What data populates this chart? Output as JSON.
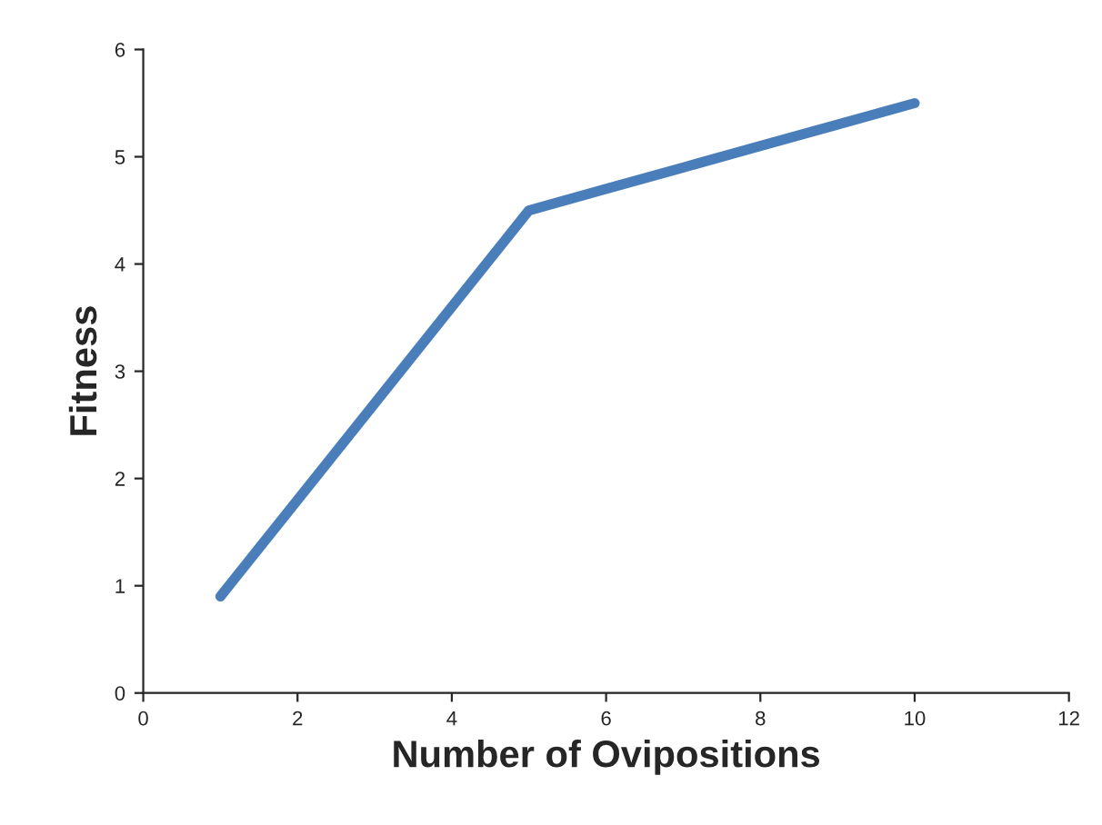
{
  "chart_data": {
    "type": "line",
    "xlabel": "Number of Ovipositions",
    "ylabel": "Fitness",
    "x": [
      1,
      2,
      3,
      4,
      5,
      6,
      7,
      8,
      9,
      10
    ],
    "series": [
      {
        "color": "#4a7ebb",
        "values": [
          0.9,
          1.8,
          2.7,
          3.6,
          4.5,
          4.7,
          4.9,
          5.1,
          5.3,
          5.5
        ]
      }
    ],
    "xlim": [
      0,
      12
    ],
    "xticks": [
      0,
      2,
      4,
      6,
      8,
      10,
      12
    ],
    "ylim": [
      0,
      6
    ],
    "yticks": [
      0,
      1,
      2,
      3,
      4,
      5,
      6
    ],
    "grid": false,
    "marker": "none",
    "line_style": "solid"
  }
}
